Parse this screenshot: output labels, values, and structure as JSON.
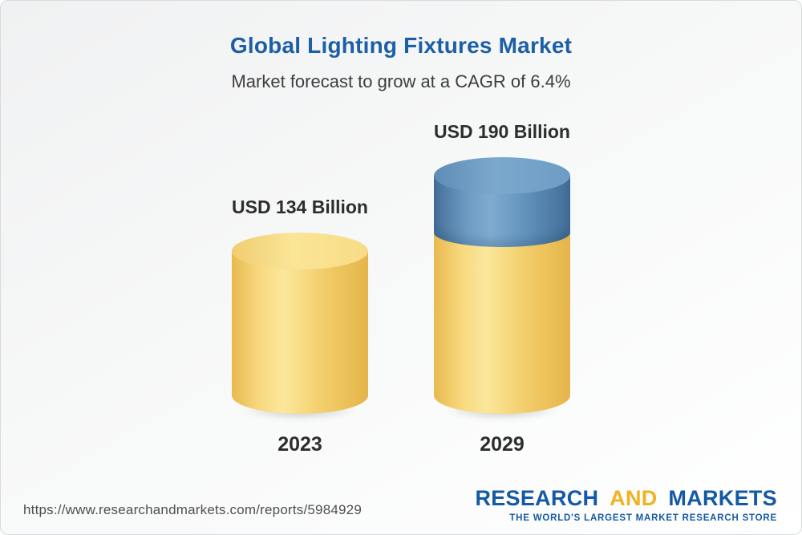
{
  "header": {
    "title": "Global Lighting Fixtures Market",
    "subtitle": "Market forecast to grow at a CAGR of 6.4%"
  },
  "chart_data": {
    "type": "bar",
    "variant": "3d-cylinder",
    "title": "Global Lighting Fixtures Market",
    "subtitle": "Market forecast to grow at a CAGR of 6.4%",
    "categories": [
      "2023",
      "2029"
    ],
    "values": [
      134,
      190
    ],
    "unit": "USD Billion",
    "value_labels": [
      "USD 134 Billion",
      "USD 190 Billion"
    ],
    "cagr_percent": 6.4,
    "ylim": [
      0,
      190
    ],
    "grid": false,
    "legend": "none",
    "colors": {
      "base_segment": "#f2cd69",
      "growth_segment": "#5f8fb9",
      "title_text": "#1d5fa6",
      "label_text": "#2d2d2d"
    }
  },
  "footer": {
    "url": "https://www.researchandmarkets.com/reports/5984929",
    "logo": {
      "word1": "RESEARCH",
      "word2": "AND",
      "word3": "MARKETS",
      "tagline": "THE WORLD'S LARGEST MARKET RESEARCH STORE"
    }
  }
}
